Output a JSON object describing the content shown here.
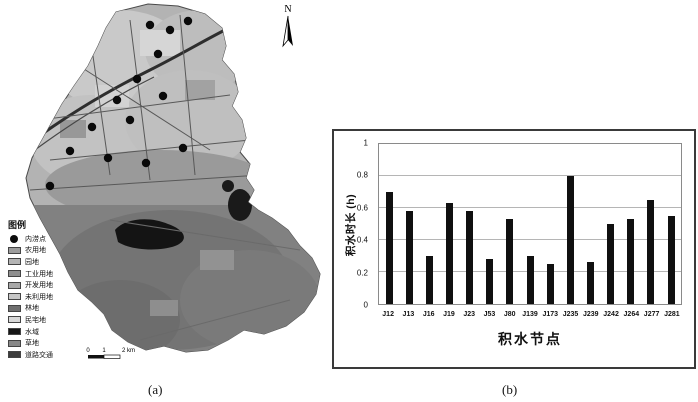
{
  "figure": {
    "caption_a": "(a)",
    "caption_b": "(b)"
  },
  "map": {
    "north_label": "N",
    "legend_title": "图例",
    "legend_items": [
      {
        "label": "内涝点",
        "color": "#0d0d0d",
        "type": "dot"
      },
      {
        "label": "农用地",
        "color": "#9d9d9d",
        "type": "swatch"
      },
      {
        "label": "园地",
        "color": "#b4b4b4",
        "type": "swatch"
      },
      {
        "label": "工业用地",
        "color": "#8f8f8f",
        "type": "swatch"
      },
      {
        "label": "开发用地",
        "color": "#a8a8a8",
        "type": "swatch"
      },
      {
        "label": "未利用地",
        "color": "#c6c6c6",
        "type": "swatch"
      },
      {
        "label": "林地",
        "color": "#6f6f6f",
        "type": "swatch"
      },
      {
        "label": "民宅地",
        "color": "#d8d8d8",
        "type": "swatch"
      },
      {
        "label": "水域",
        "color": "#161616",
        "type": "swatch"
      },
      {
        "label": "草地",
        "color": "#888888",
        "type": "swatch"
      },
      {
        "label": "道路交通",
        "color": "#3c3c3c",
        "type": "swatch"
      }
    ],
    "scalebar_labels": [
      "0",
      "1",
      "2 km"
    ],
    "waterlog_points": [
      [
        150,
        25
      ],
      [
        170,
        30
      ],
      [
        188,
        21
      ],
      [
        158,
        54
      ],
      [
        137,
        79
      ],
      [
        117,
        100
      ],
      [
        92,
        127
      ],
      [
        70,
        151
      ],
      [
        108,
        158
      ],
      [
        146,
        163
      ],
      [
        183,
        148
      ],
      [
        50,
        186
      ],
      [
        130,
        120
      ],
      [
        163,
        96
      ]
    ]
  },
  "chart_data": {
    "type": "bar",
    "title": "",
    "categories": [
      "J12",
      "J13",
      "J16",
      "J19",
      "J23",
      "J53",
      "J80",
      "J139",
      "J173",
      "J235",
      "J239",
      "J242",
      "J264",
      "J277",
      "J281"
    ],
    "values": [
      0.7,
      0.58,
      0.3,
      0.63,
      0.58,
      0.28,
      0.53,
      0.3,
      0.25,
      0.8,
      0.26,
      0.5,
      0.53,
      0.65,
      0.55
    ],
    "xlabel": "积水节点",
    "ylabel": "积水时长 (h)",
    "ylim": [
      0,
      1
    ],
    "yticks": [
      0,
      0.2,
      0.4,
      0.6,
      0.8,
      1
    ],
    "grid": true,
    "legend_position": "none",
    "bar_color": "#101010"
  }
}
